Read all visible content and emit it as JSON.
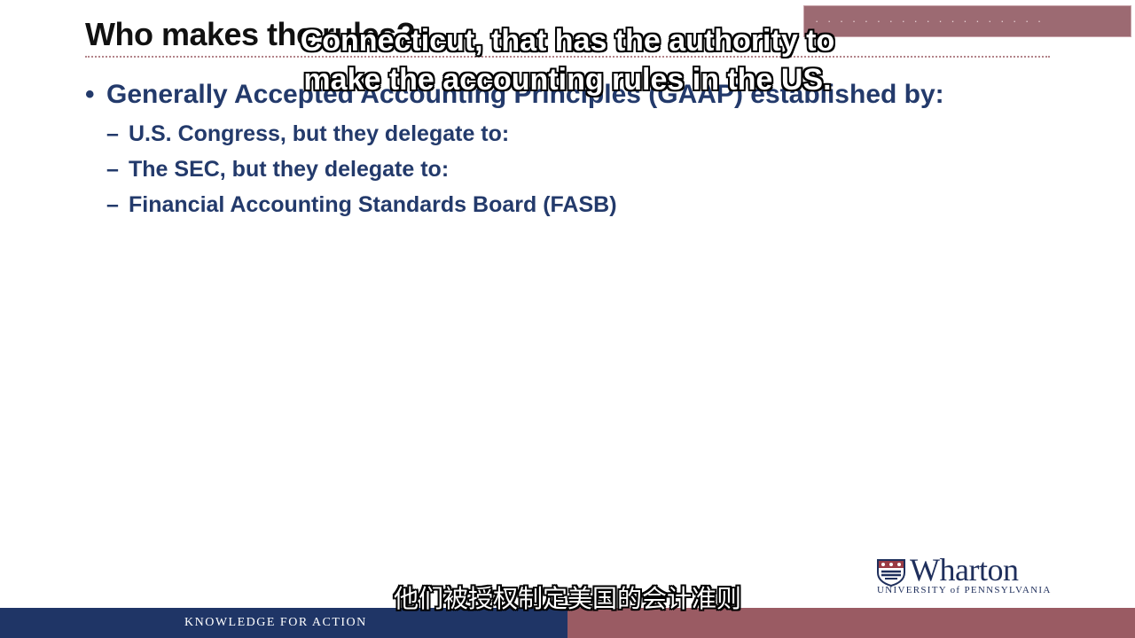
{
  "slide": {
    "title": "Who makes the rules?",
    "main_bullet": "Generally Accepted Accounting Principles (GAAP) established by:",
    "sub_items": [
      "U.S. Congress, but they delegate to:",
      "The SEC, but they delegate to:",
      "Financial Accounting Standards Board (FASB)"
    ],
    "bullet_glyph": "•",
    "dash_glyph": "–"
  },
  "corner_box": {
    "text": "· · · · · · · · · · · · · · · · · · ·"
  },
  "captions": {
    "english_line_1": "Connecticut, that has the authority to",
    "english_line_2": "make the accounting rules in the US.",
    "chinese": "他们被授权制定美国的会计准则"
  },
  "logo": {
    "wordmark": "Wharton",
    "subtitle": "UNIVERSITY of PENNSYLVANIA",
    "icon": "penn-shield-icon"
  },
  "footer": {
    "tagline": "KNOWLEDGE FOR ACTION"
  },
  "colors": {
    "navy": "#1f3566",
    "bullet_blue": "#233a6b",
    "maroon": "#9a5b63"
  }
}
